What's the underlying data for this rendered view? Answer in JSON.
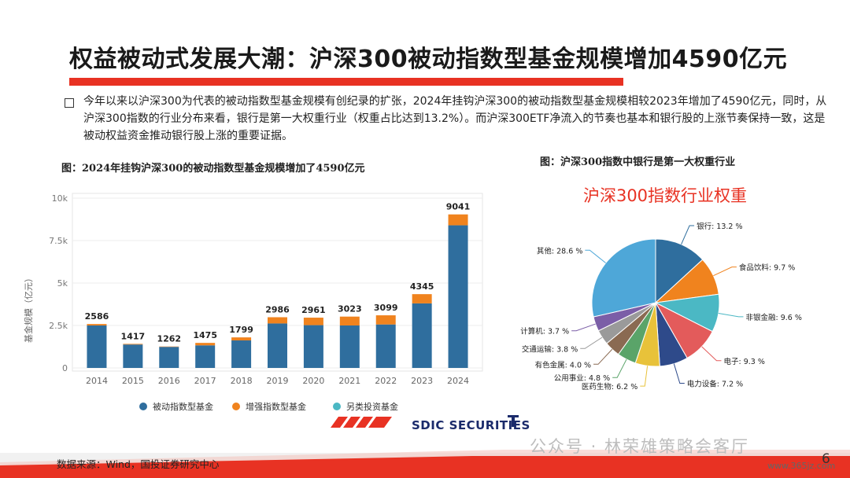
{
  "header": {
    "title": "权益被动式发展大潮：沪深300被动指数型基金规模增加4590亿元"
  },
  "body": {
    "paragraph": "今年以来以沪深300为代表的被动指数型基金规模有创纪录的扩张，2024年挂钩沪深300的被动指数型基金规模相较2023年增加了4590亿元，同时，从沪深300指数的行业分布来看，银行是第一大权重行业（权重占比达到13.2%）。而沪深300ETF净流入的节奏也基本和银行股的上涨节奏保持一致，这是被动权益资金推动银行股上涨的重要证据。"
  },
  "captions": {
    "left": "图：2024年挂钩沪深300的被动指数型基金规模增加了4590亿元",
    "right": "图：沪深300指数中银行是第一大权重行业"
  },
  "footer": {
    "source": "数据来源：Wind，国投证券研究中心",
    "page_number": "6",
    "logo_text": "SDIC SECURITIES",
    "watermark": "公众号 · 林荣雄策略会客厅",
    "watermark_url": "www.365jz.com"
  },
  "colors": {
    "accent": "#e83223",
    "passive": "#2f6e9e",
    "enhanced": "#f0831e",
    "alternative": "#4bb8c4"
  },
  "chart_data": [
    {
      "type": "bar",
      "stacked": true,
      "title": "",
      "xlabel": "",
      "ylabel": "基金规模（亿元）",
      "ylim": [
        0,
        10000
      ],
      "yticks": [
        "0",
        "2.5k",
        "5k",
        "7.5k",
        "10k"
      ],
      "categories": [
        "2014",
        "2015",
        "2016",
        "2017",
        "2018",
        "2019",
        "2020",
        "2021",
        "2022",
        "2023",
        "2024"
      ],
      "total_labels": [
        "2586",
        "1417",
        "1262",
        "1475",
        "1799",
        "2986",
        "2961",
        "3023",
        "3099",
        "4345",
        "9041"
      ],
      "legend_position": "bottom",
      "series": [
        {
          "name": "被动指数型基金",
          "color": "#2f6e9e",
          "values": [
            2500,
            1380,
            1240,
            1330,
            1620,
            2620,
            2520,
            2500,
            2560,
            3800,
            8400
          ]
        },
        {
          "name": "增强指数型基金",
          "color": "#f0831e",
          "values": [
            86,
            37,
            22,
            145,
            179,
            366,
            441,
            523,
            539,
            545,
            641
          ]
        },
        {
          "name": "另类投资基金",
          "color": "#4bb8c4",
          "values": [
            0,
            0,
            0,
            0,
            0,
            0,
            0,
            0,
            0,
            0,
            0
          ]
        }
      ]
    },
    {
      "type": "pie",
      "title": "沪深300指数行业权重",
      "slices": [
        {
          "label": "银行: 13.2 %",
          "value": 13.2,
          "color": "#2f6e9e"
        },
        {
          "label": "食品饮料: 9.7 %",
          "value": 9.7,
          "color": "#f0831e"
        },
        {
          "label": "非银金融: 9.6 %",
          "value": 9.6,
          "color": "#4bb8c4"
        },
        {
          "label": "电子: 9.3 %",
          "value": 9.3,
          "color": "#e35b5b"
        },
        {
          "label": "电力设备: 7.2 %",
          "value": 7.2,
          "color": "#2e4a8a"
        },
        {
          "label": "医药生物: 6.2 %",
          "value": 6.2,
          "color": "#e8c23a"
        },
        {
          "label": "公用事业: 4.8 %",
          "value": 4.8,
          "color": "#5aa469"
        },
        {
          "label": "有色金属: 4.0 %",
          "value": 4.0,
          "color": "#8a6a52"
        },
        {
          "label": "交通运输: 3.8 %",
          "value": 3.8,
          "color": "#9a9a9a"
        },
        {
          "label": "计算机: 3.7 %",
          "value": 3.7,
          "color": "#7b5ea7"
        },
        {
          "label": "其他: 28.6 %",
          "value": 28.6,
          "color": "#4ea7d8"
        }
      ]
    }
  ]
}
